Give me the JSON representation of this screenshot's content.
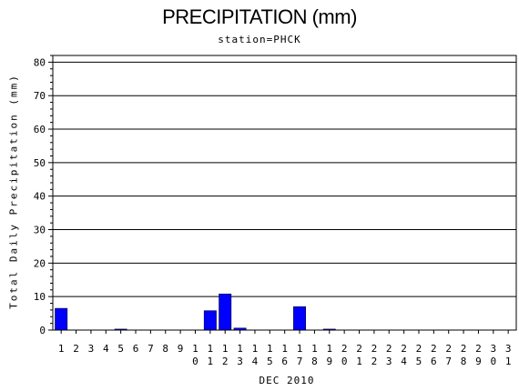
{
  "chart_data": {
    "type": "bar",
    "title": "PRECIPITATION (mm)",
    "subtitle": "station=PHCK",
    "ylabel": "Total Daily Precipitation (mm)",
    "xlabel": "DEC 2010",
    "ylim": [
      0,
      82
    ],
    "yticks": [
      0,
      10,
      20,
      30,
      40,
      50,
      60,
      70,
      80
    ],
    "grid": true,
    "bar_color": "#0000ff",
    "categories": [
      "1",
      "2",
      "3",
      "4",
      "5",
      "6",
      "7",
      "8",
      "9",
      "10",
      "11",
      "12",
      "13",
      "14",
      "15",
      "16",
      "17",
      "18",
      "19",
      "20",
      "21",
      "22",
      "23",
      "24",
      "25",
      "26",
      "27",
      "28",
      "29",
      "30",
      "31"
    ],
    "values": [
      6.5,
      0,
      0,
      0,
      0.3,
      0,
      0,
      0,
      0,
      0,
      5.8,
      10.8,
      0.6,
      0,
      0,
      0,
      7.0,
      0,
      0.3,
      0,
      0,
      0,
      0,
      0,
      0,
      0,
      0,
      0,
      0,
      0,
      0
    ]
  }
}
